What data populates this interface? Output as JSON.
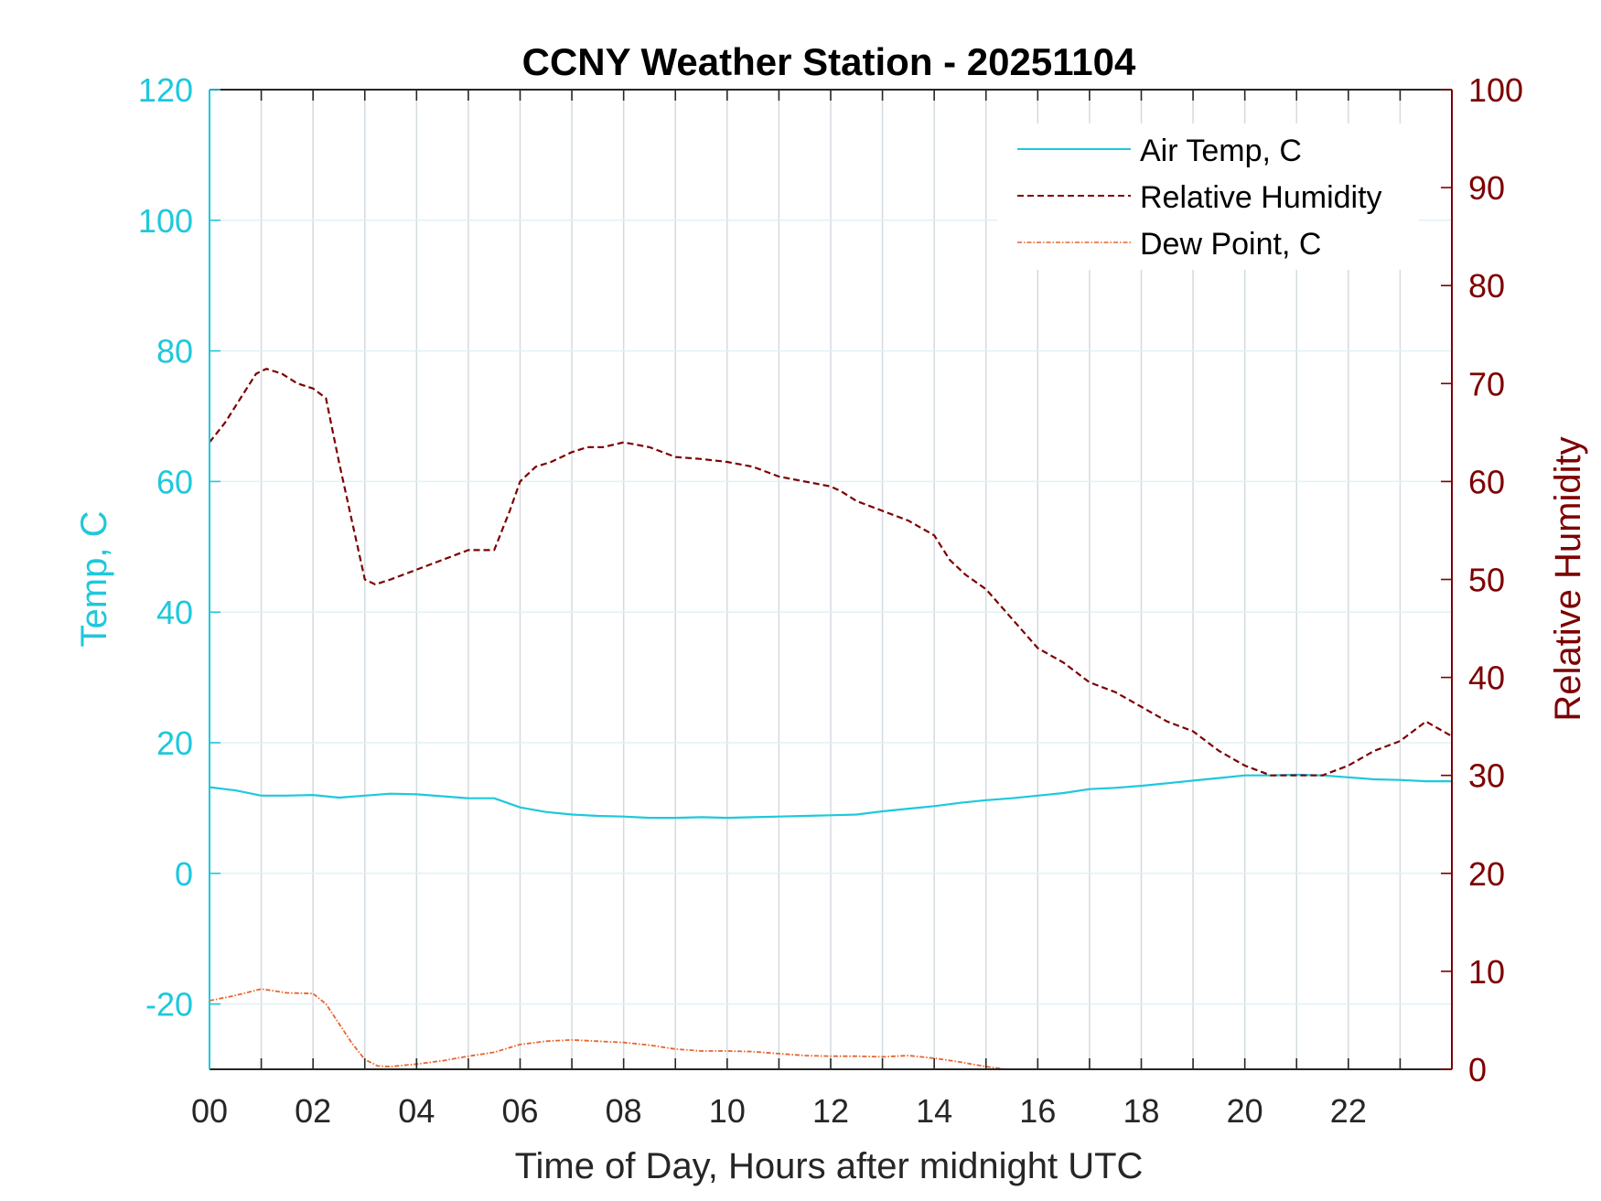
{
  "chart_data": {
    "type": "line",
    "title": "CCNY Weather Station - 20251104",
    "xlabel": "Time of Day, Hours after midnight UTC",
    "ylabel_left": "Temp, C",
    "ylabel_right": "Relative Humidity",
    "xlim": [
      0,
      24
    ],
    "ylim_left": [
      -30,
      120
    ],
    "ylim_right": [
      0,
      100
    ],
    "x_tick_values": [
      0,
      2,
      4,
      6,
      8,
      10,
      12,
      14,
      16,
      18,
      20,
      22
    ],
    "x_tick_labels": [
      "00",
      "02",
      "04",
      "06",
      "08",
      "10",
      "12",
      "14",
      "16",
      "18",
      "20",
      "22"
    ],
    "y_left_ticks": [
      -20,
      0,
      20,
      40,
      60,
      80,
      100,
      120
    ],
    "y_left_tick_labels": [
      "-20",
      "0",
      "20",
      "40",
      "60",
      "80",
      "100",
      "120"
    ],
    "y_right_ticks": [
      0,
      10,
      20,
      30,
      40,
      50,
      60,
      70,
      80,
      90,
      100
    ],
    "y_right_tick_labels": [
      "0",
      "10",
      "20",
      "30",
      "40",
      "50",
      "60",
      "70",
      "80",
      "90",
      "100"
    ],
    "grid": true,
    "legend_position": "top-right",
    "colors": {
      "left_axis": "#1ec8dc",
      "right_axis": "#7d0000",
      "air_temp": "#1ec8dc",
      "humidity": "#7d0000",
      "dew_point": "#e8642e",
      "grid": "#d3dbe0"
    },
    "series": [
      {
        "name": "Air Temp, C",
        "axis": "left",
        "style": "solid",
        "x": [
          0,
          0.5,
          1,
          1.5,
          2,
          2.5,
          3,
          3.5,
          4,
          4.5,
          5,
          5.5,
          6,
          6.5,
          7,
          7.5,
          8,
          8.5,
          9,
          9.5,
          10,
          10.5,
          11,
          11.5,
          12,
          12.5,
          13,
          13.5,
          14,
          14.5,
          15,
          15.5,
          16,
          16.5,
          17,
          17.5,
          18,
          18.5,
          19,
          19.5,
          20,
          20.5,
          21,
          21.5,
          22,
          22.5,
          23,
          23.5,
          24
        ],
        "y": [
          13.2,
          12.7,
          11.9,
          11.9,
          12.0,
          11.6,
          11.9,
          12.2,
          12.1,
          11.8,
          11.5,
          11.5,
          10.1,
          9.4,
          9.0,
          8.8,
          8.7,
          8.5,
          8.5,
          8.6,
          8.5,
          8.6,
          8.7,
          8.8,
          8.9,
          9.0,
          9.5,
          9.9,
          10.3,
          10.8,
          11.2,
          11.5,
          11.9,
          12.3,
          12.9,
          13.1,
          13.4,
          13.8,
          14.2,
          14.6,
          15.0,
          15.0,
          15.1,
          15.0,
          14.7,
          14.4,
          14.3,
          14.1,
          14.1
        ]
      },
      {
        "name": "Relative Humidity",
        "axis": "right",
        "style": "dashed",
        "x": [
          0,
          0.3,
          0.6,
          0.9,
          1.1,
          1.4,
          1.7,
          2.0,
          2.25,
          2.5,
          2.75,
          3.0,
          3.2,
          3.5,
          4.0,
          4.5,
          5.0,
          5.5,
          5.8,
          6.0,
          6.3,
          6.6,
          7.0,
          7.3,
          7.6,
          8.0,
          8.5,
          9.0,
          9.5,
          10.0,
          10.5,
          11.0,
          11.5,
          12.0,
          12.2,
          12.5,
          13.0,
          13.5,
          14.0,
          14.3,
          14.6,
          15.0,
          15.5,
          16.0,
          16.5,
          17.0,
          17.5,
          18.0,
          18.5,
          19.0,
          19.5,
          20.0,
          20.5,
          21.0,
          21.5,
          22.0,
          22.5,
          23.0,
          23.5,
          24.0
        ],
        "y": [
          64.0,
          66.0,
          68.5,
          71.0,
          71.5,
          71.0,
          70.0,
          69.5,
          68.5,
          62.0,
          56.0,
          50.0,
          49.5,
          50.0,
          51.0,
          52.0,
          53.0,
          53.0,
          57.0,
          60.0,
          61.5,
          62.0,
          63.0,
          63.5,
          63.5,
          64.0,
          63.5,
          62.5,
          62.3,
          62.0,
          61.5,
          60.5,
          60.0,
          59.5,
          59.0,
          58.0,
          57.0,
          56.0,
          54.5,
          52.0,
          50.5,
          49.0,
          46.0,
          43.0,
          41.5,
          39.5,
          38.5,
          37.0,
          35.5,
          34.5,
          32.5,
          31.0,
          30.0,
          30.0,
          30.0,
          31.0,
          32.5,
          33.5,
          35.5,
          34.0
        ]
      },
      {
        "name": "Dew Point, C",
        "axis": "left",
        "style": "dashdot",
        "x": [
          0,
          0.5,
          1.0,
          1.5,
          2.0,
          2.25,
          2.5,
          2.75,
          3.0,
          3.25,
          3.5,
          4.0,
          4.5,
          5.0,
          5.5,
          6.0,
          6.5,
          7.0,
          7.5,
          8.0,
          8.5,
          9.0,
          9.5,
          10.0,
          10.5,
          11.0,
          11.5,
          12.0,
          12.5,
          13.0,
          13.5,
          14.0,
          14.5,
          15.0,
          15.4
        ],
        "y": [
          -19.5,
          -18.7,
          -17.7,
          -18.3,
          -18.4,
          -20.0,
          -23.0,
          -26.0,
          -28.5,
          -29.5,
          -29.6,
          -29.2,
          -28.7,
          -28.0,
          -27.4,
          -26.2,
          -25.7,
          -25.5,
          -25.7,
          -25.9,
          -26.3,
          -26.9,
          -27.2,
          -27.2,
          -27.3,
          -27.6,
          -27.9,
          -28.0,
          -28.0,
          -28.1,
          -27.9,
          -28.3,
          -28.9,
          -29.6,
          -30.0
        ]
      }
    ]
  }
}
